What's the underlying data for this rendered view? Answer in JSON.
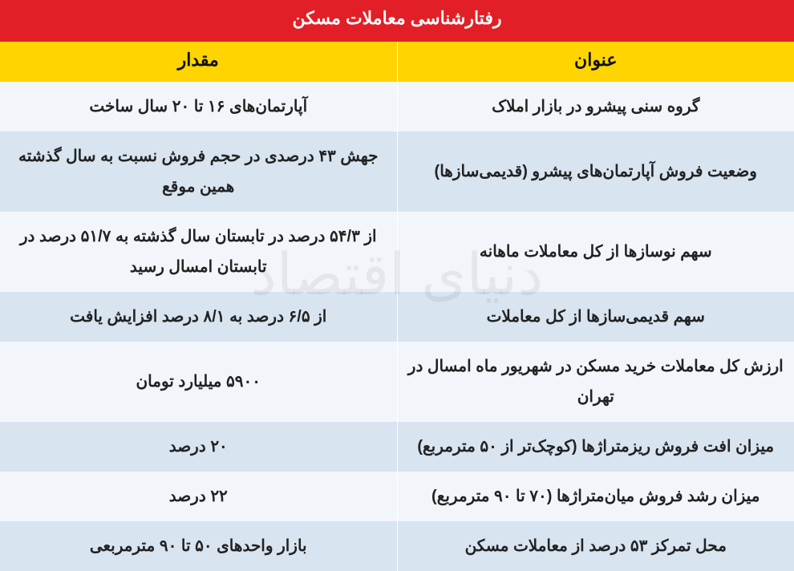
{
  "title": "رفتارشناسی معاملات مسکن",
  "columns": {
    "title": "عنوان",
    "value": "مقدار"
  },
  "rows": [
    {
      "title": "گروه سنی پیشرو در بازار املاک",
      "value": "آپارتمان‌های ۱۶ تا ۲۰ سال ساخت"
    },
    {
      "title": "وضعیت فروش آپارتمان‌های پیشرو (قدیمی‌سازها)",
      "value": "جهش ۴۳ درصدی در حجم فروش نسبت به سال گذشته همین موقع"
    },
    {
      "title": "سهم نوسازها از کل معاملات ماهانه",
      "value": "از ۵۴/۳ درصد در تابستان سال گذشته به ۵۱/۷ درصد در تابستان امسال رسید"
    },
    {
      "title": "سهم قدیمی‌سازها از کل معاملات",
      "value": "از ۶/۵ درصد به ۸/۱ درصد افزایش یافت"
    },
    {
      "title": "ارزش کل معاملات خرید مسکن در شهریور ماه امسال در تهران",
      "value": "۵۹۰۰ میلیارد تومان"
    },
    {
      "title": "میزان افت فروش ریزمتراژها (کوچک‌تر از ۵۰ مترمربع)",
      "value": "۲۰ درصد"
    },
    {
      "title": "میزان رشد فروش میان‌متراژها (۷۰ تا ۹۰ مترمربع)",
      "value": "۲۲ درصد"
    },
    {
      "title": "محل تمرکز ۵۳ درصد از معاملات مسکن",
      "value": "بازار واحدهای ۵۰ تا ۹۰ مترمربعی"
    }
  ],
  "colors": {
    "title_bg": "#e21f26",
    "title_fg": "#ffffff",
    "header_bg": "#fed401",
    "row_light": "#f2f6fb",
    "row_dark": "#d8e4f0",
    "text": "#222222"
  },
  "watermark": "دنیای اقتصاد"
}
